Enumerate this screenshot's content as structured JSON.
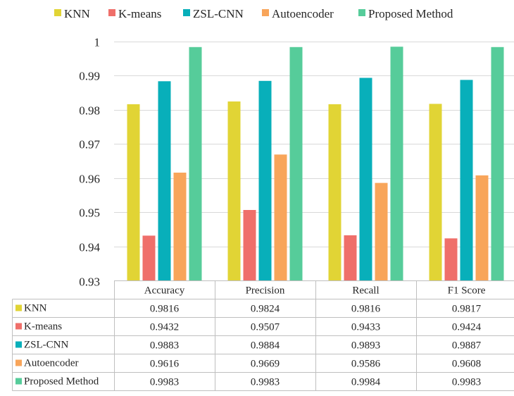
{
  "chart_data": {
    "type": "bar",
    "title": "",
    "xlabel": "",
    "ylabel": "",
    "categories": [
      "Accuracy",
      "Precision",
      "Recall",
      "F1 Score"
    ],
    "ylim": [
      0.93,
      1
    ],
    "yticks": [
      "0.93",
      "0.94",
      "0.95",
      "0.96",
      "0.97",
      "0.98",
      "0.99",
      "1"
    ],
    "grid": true,
    "legend_position": "top",
    "data_table": true,
    "series": [
      {
        "name": "KNN",
        "color": "#E1D435",
        "values": [
          0.9816,
          0.9824,
          0.9816,
          0.9817
        ],
        "labels": [
          "0.9816",
          "0.9824",
          "0.9816",
          "0.9817"
        ]
      },
      {
        "name": "K-means",
        "color": "#EF6F6A",
        "values": [
          0.9432,
          0.9507,
          0.9433,
          0.9424
        ],
        "labels": [
          "0.9432",
          "0.9507",
          "0.9433",
          "0.9424"
        ]
      },
      {
        "name": "ZSL-CNN",
        "color": "#08AFBA",
        "values": [
          0.9883,
          0.9884,
          0.9893,
          0.9887
        ],
        "labels": [
          "0.9883",
          "0.9884",
          "0.9893",
          "0.9887"
        ]
      },
      {
        "name": "Autoencoder",
        "color": "#F8A55A",
        "values": [
          0.9616,
          0.9669,
          0.9586,
          0.9608
        ],
        "labels": [
          "0.9616",
          "0.9669",
          "0.9586",
          "0.9608"
        ]
      },
      {
        "name": "Proposed Method",
        "color": "#56CC9A",
        "values": [
          0.9983,
          0.9983,
          0.9984,
          0.9983
        ],
        "labels": [
          "0.9983",
          "0.9983",
          "0.9984",
          "0.9983"
        ]
      }
    ]
  }
}
